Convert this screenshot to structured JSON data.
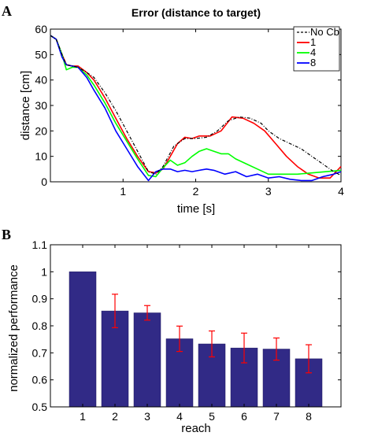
{
  "chart_data": [
    {
      "panel": "A",
      "type": "line",
      "title": "Error (distance to target)",
      "xlabel": "time [s]",
      "ylabel": "distance [cm]",
      "xlim": [
        0,
        4
      ],
      "ylim": [
        0,
        60
      ],
      "xticks": [
        "1",
        "2",
        "3",
        "4"
      ],
      "yticks": [
        "0",
        "10",
        "20",
        "30",
        "40",
        "50",
        "60"
      ],
      "legend_position": "top-right",
      "series": [
        {
          "name": "No Cb",
          "color": "#000000",
          "dashed": true,
          "x": [
            0,
            0.08,
            0.16,
            0.22,
            0.3,
            0.38,
            0.5,
            0.6,
            0.75,
            0.9,
            1.05,
            1.2,
            1.35,
            1.45,
            1.55,
            1.7,
            1.85,
            2.0,
            2.15,
            2.3,
            2.45,
            2.6,
            2.75,
            2.9,
            3.0,
            3.15,
            3.3,
            3.45,
            3.6,
            3.75,
            3.9,
            4.0
          ],
          "y": [
            57.5,
            56,
            50,
            46,
            45.5,
            45,
            43,
            41,
            35,
            28,
            20,
            12,
            4,
            3,
            6,
            14,
            17,
            17,
            17.5,
            20,
            24,
            25.5,
            25,
            23,
            20,
            17,
            15,
            13,
            10,
            7,
            4,
            2.5
          ]
        },
        {
          "name": "1",
          "color": "#ff0000",
          "x": [
            0,
            0.08,
            0.16,
            0.22,
            0.3,
            0.38,
            0.5,
            0.6,
            0.75,
            0.9,
            1.05,
            1.2,
            1.35,
            1.45,
            1.55,
            1.65,
            1.75,
            1.85,
            1.95,
            2.05,
            2.2,
            2.35,
            2.5,
            2.65,
            2.8,
            2.95,
            3.1,
            3.25,
            3.4,
            3.55,
            3.7,
            3.85,
            4.0
          ],
          "y": [
            57.5,
            56,
            50,
            46,
            45.5,
            45.5,
            43,
            40,
            33,
            25,
            17,
            10,
            4,
            3.5,
            5,
            10,
            15,
            17.5,
            17,
            18,
            18,
            20,
            25.5,
            25,
            23,
            20,
            15,
            10,
            6,
            3,
            1.5,
            1.5,
            6
          ]
        },
        {
          "name": "4",
          "color": "#00ff00",
          "x": [
            0,
            0.08,
            0.16,
            0.22,
            0.3,
            0.38,
            0.5,
            0.6,
            0.75,
            0.9,
            1.05,
            1.2,
            1.35,
            1.45,
            1.55,
            1.65,
            1.75,
            1.85,
            1.95,
            2.05,
            2.15,
            2.25,
            2.35,
            2.45,
            2.55,
            2.7,
            2.85,
            3.0,
            3.2,
            3.4,
            3.6,
            3.8,
            4.0
          ],
          "y": [
            57.5,
            56,
            50,
            44,
            45,
            45,
            42,
            38,
            31,
            23,
            16,
            9,
            2.5,
            2,
            5.5,
            8.5,
            6.5,
            7.5,
            10,
            12,
            13,
            12,
            11,
            11,
            9,
            7,
            5,
            3,
            3,
            3,
            3.5,
            4,
            4.5
          ]
        },
        {
          "name": "8",
          "color": "#0000ff",
          "x": [
            0,
            0.08,
            0.16,
            0.22,
            0.3,
            0.38,
            0.5,
            0.6,
            0.75,
            0.9,
            1.05,
            1.2,
            1.35,
            1.45,
            1.55,
            1.65,
            1.75,
            1.85,
            1.95,
            2.05,
            2.15,
            2.25,
            2.4,
            2.55,
            2.7,
            2.85,
            3.0,
            3.15,
            3.3,
            3.45,
            3.6,
            3.75,
            3.9,
            4.0
          ],
          "y": [
            57.5,
            56,
            49,
            46,
            45.5,
            45,
            41,
            36,
            29,
            20,
            13,
            6,
            0.5,
            4,
            5,
            5,
            4,
            4.5,
            4,
            4.5,
            5,
            4.5,
            3,
            4,
            2,
            3,
            1.5,
            2,
            1,
            0.5,
            0.5,
            2,
            3,
            4
          ]
        }
      ]
    },
    {
      "panel": "B",
      "type": "bar",
      "xlabel": "reach",
      "ylabel": "normalized performance",
      "ylim": [
        0.5,
        1.1
      ],
      "yticks": [
        "0.5",
        "0.6",
        "0.7",
        "0.8",
        "0.9",
        "1",
        "1.1"
      ],
      "categories": [
        "1",
        "2",
        "3",
        "4",
        "5",
        "6",
        "7",
        "8"
      ],
      "values": [
        1.0,
        0.855,
        0.848,
        0.752,
        0.733,
        0.718,
        0.714,
        0.678
      ],
      "errors": [
        0.0,
        0.062,
        0.027,
        0.047,
        0.048,
        0.055,
        0.041,
        0.052
      ],
      "bar_color": "#312a86",
      "error_color": "#ff0000"
    }
  ]
}
